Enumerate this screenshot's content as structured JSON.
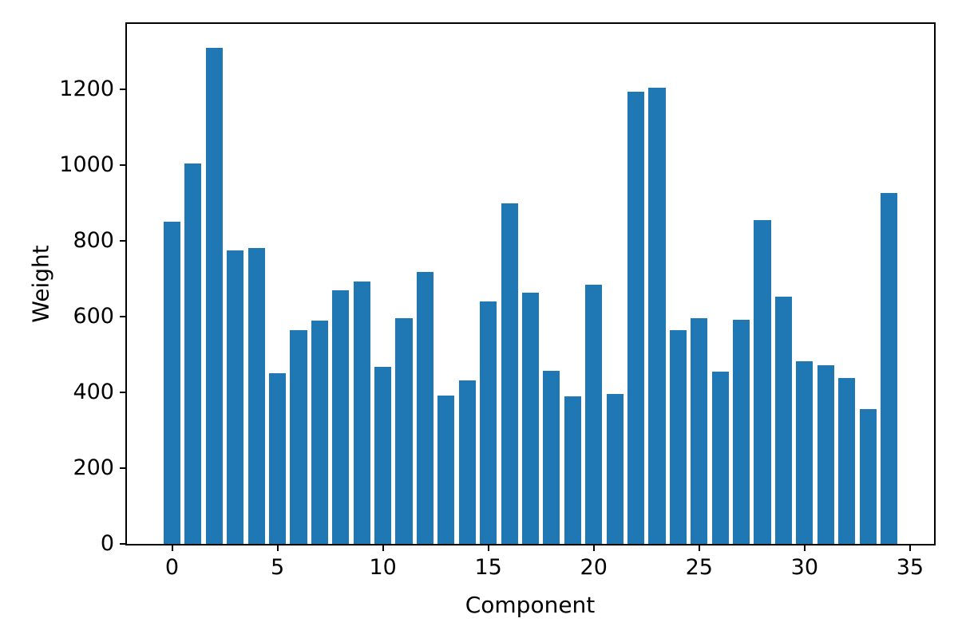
{
  "figure": {
    "background": "#ffffff",
    "spine_color": "#000000",
    "text_color": "#000000"
  },
  "chart_data": {
    "type": "bar",
    "title": "",
    "xlabel": "Component",
    "ylabel": "Weight",
    "bar_color": "#1f77b4",
    "bar_width": 0.8,
    "categories": [
      0,
      1,
      2,
      3,
      4,
      5,
      6,
      7,
      8,
      9,
      10,
      11,
      12,
      13,
      14,
      15,
      16,
      17,
      18,
      19,
      20,
      21,
      22,
      23,
      24,
      25,
      26,
      27,
      28,
      29,
      30,
      31,
      32,
      33,
      34
    ],
    "values": [
      851,
      1005,
      1310,
      775,
      782,
      450,
      565,
      589,
      670,
      692,
      468,
      595,
      718,
      392,
      432,
      640,
      899,
      663,
      456,
      390,
      685,
      395,
      1195,
      1205,
      565,
      597,
      455,
      592,
      855,
      653,
      483,
      471,
      437,
      355,
      926
    ],
    "x_ticks": [
      0,
      5,
      10,
      15,
      20,
      25,
      30,
      35
    ],
    "y_ticks": [
      0,
      200,
      400,
      600,
      800,
      1000,
      1200
    ],
    "xlim": [
      -2.14,
      36.14
    ],
    "ylim": [
      0,
      1373
    ],
    "grid": false,
    "legend": null
  }
}
